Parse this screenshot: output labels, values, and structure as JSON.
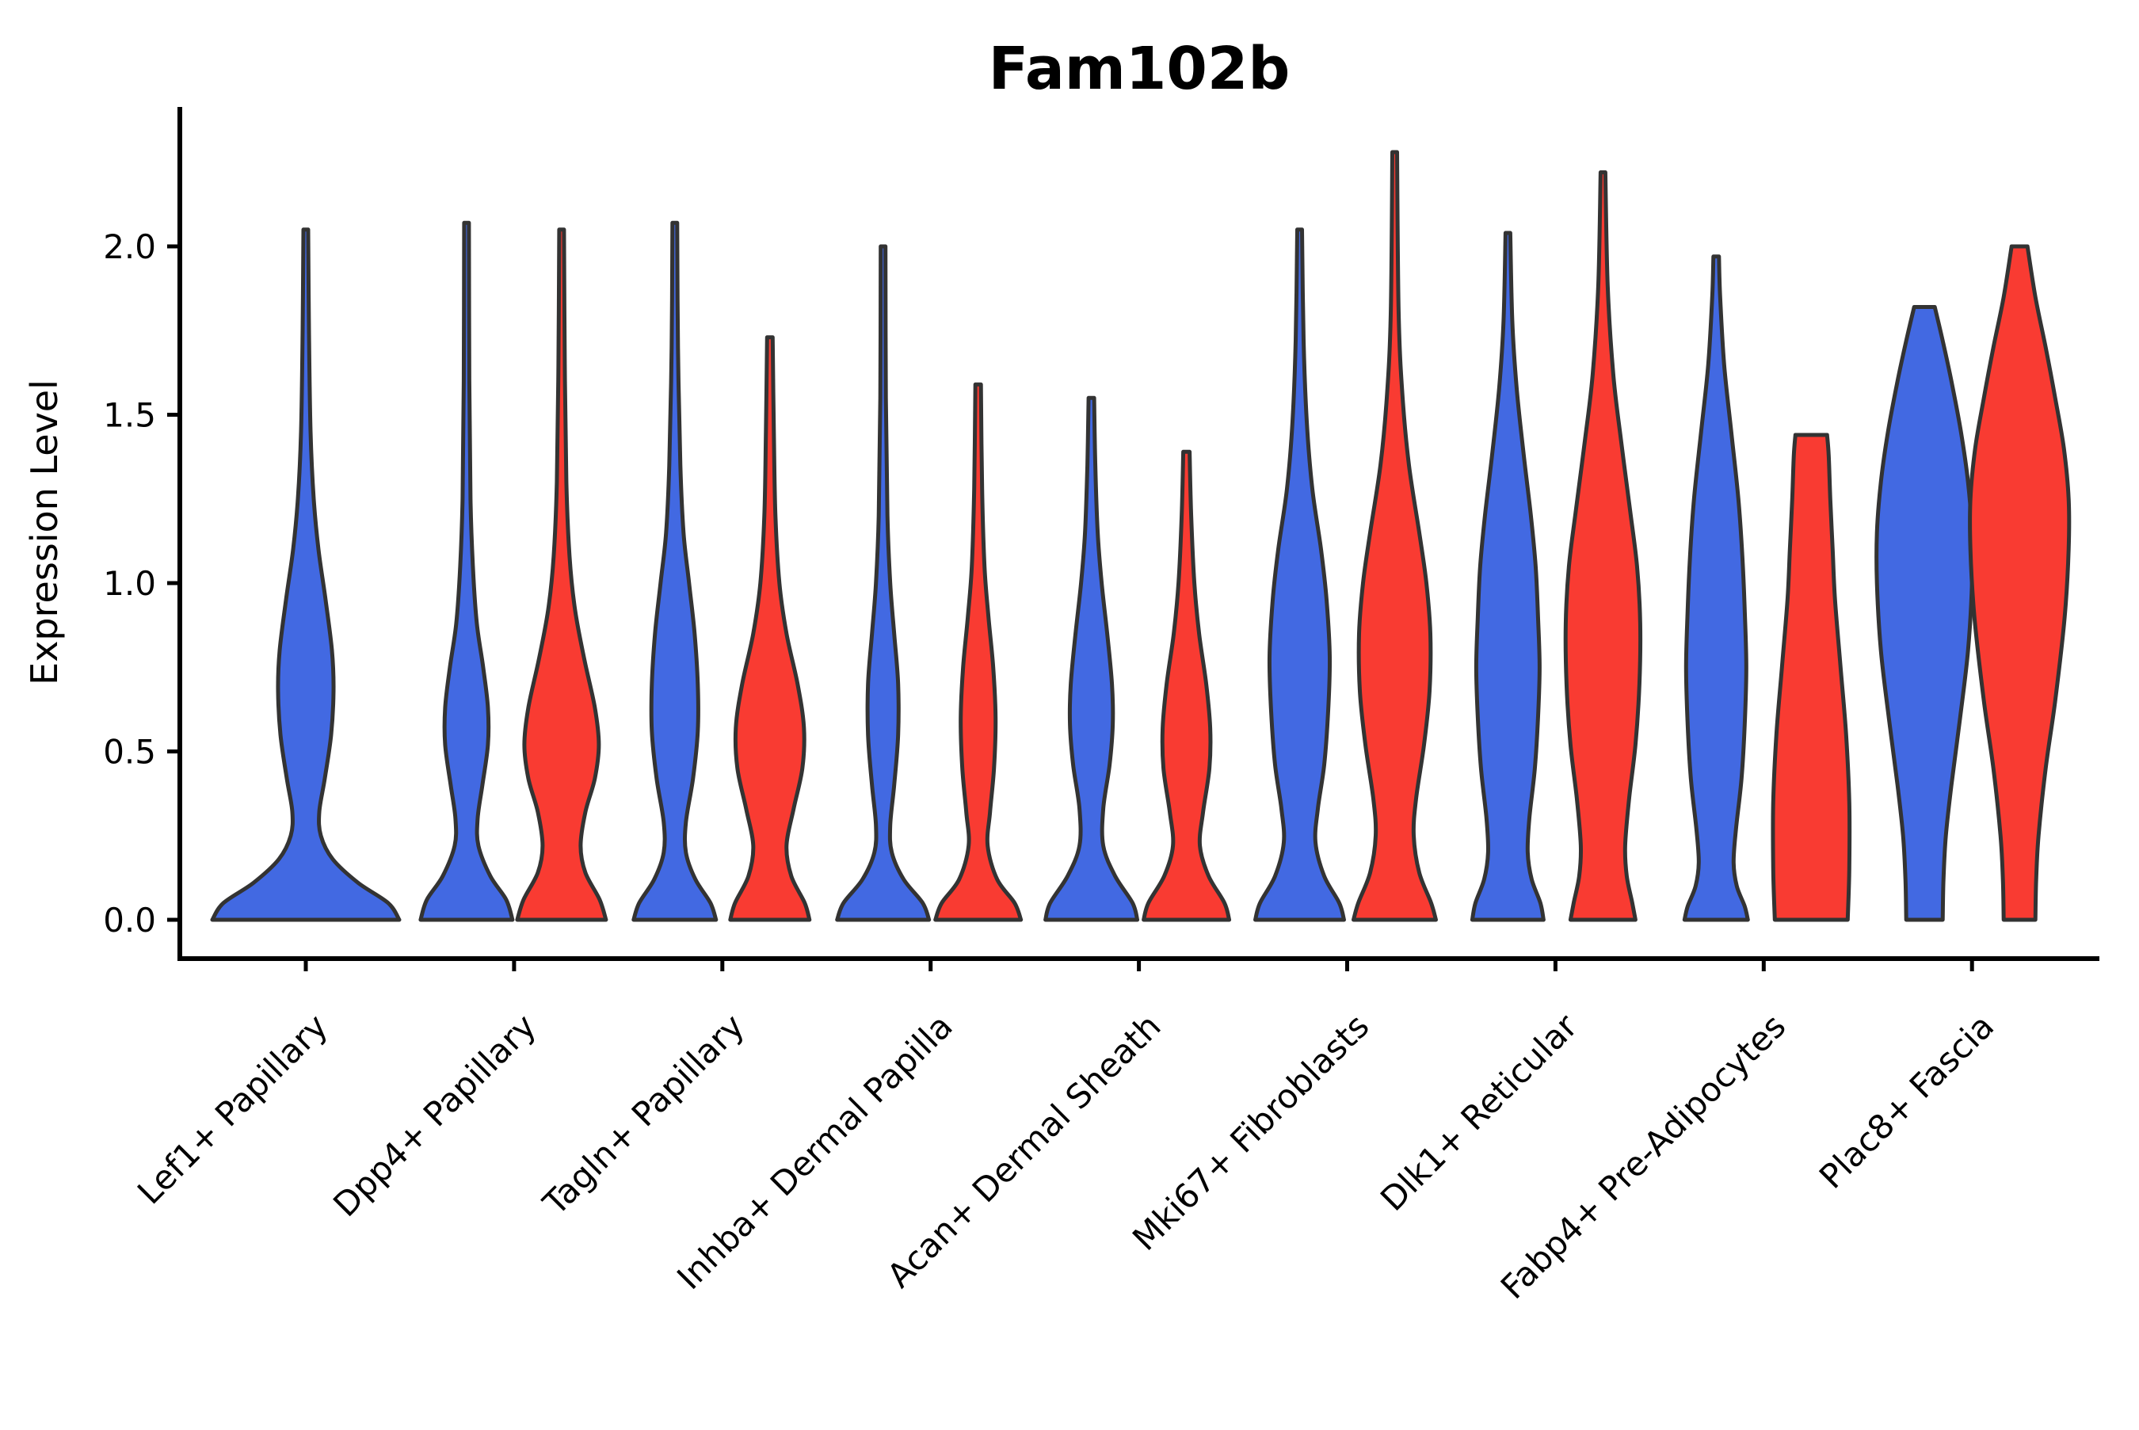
{
  "chart_data": {
    "type": "violin",
    "title": "Fam102b",
    "ylabel": "Expression Level",
    "xlabel": "",
    "yticks": [
      "0.0",
      "0.5",
      "1.0",
      "1.5",
      "2.0"
    ],
    "ylim": [
      -0.12,
      2.4
    ],
    "grid": false,
    "legend_position": "none",
    "x_tick_rotation_deg": 45,
    "colors": {
      "split_blue": "#4269E2",
      "split_red": "#F93B32",
      "outline": "#333333",
      "axis": "#000000"
    },
    "categories": [
      "Lef1+ Papillary",
      "Dpp4+ Papillary",
      "Tagln+ Papillary",
      "Inhba+ Dermal Papilla",
      "Acan+ Dermal Sheath",
      "Mki67+ Fibroblasts",
      "Dlk1+ Reticular",
      "Fabp4+ Pre-Adipocytes",
      "Plac8+ Fascia"
    ],
    "violins": [
      {
        "category": "Lef1+ Papillary",
        "blue": {
          "max_expression": 2.05,
          "solo": true,
          "profile": [
            [
              0,
              118
            ],
            [
              0.05,
              104
            ],
            [
              0.11,
              66
            ],
            [
              0.18,
              34
            ],
            [
              0.25,
              19
            ],
            [
              0.32,
              17
            ],
            [
              0.42,
              24
            ],
            [
              0.55,
              32
            ],
            [
              0.68,
              35
            ],
            [
              0.8,
              33
            ],
            [
              0.95,
              25
            ],
            [
              1.1,
              16
            ],
            [
              1.25,
              10
            ],
            [
              1.45,
              6
            ],
            [
              1.75,
              4
            ],
            [
              2.05,
              3
            ]
          ]
        },
        "red": null
      },
      {
        "category": "Dpp4+ Papillary",
        "blue": {
          "max_expression": 2.07,
          "solo": false,
          "profile": [
            [
              0,
              58
            ],
            [
              0.06,
              50
            ],
            [
              0.13,
              30
            ],
            [
              0.22,
              15
            ],
            [
              0.3,
              14
            ],
            [
              0.4,
              20
            ],
            [
              0.52,
              27
            ],
            [
              0.63,
              27
            ],
            [
              0.75,
              21
            ],
            [
              0.88,
              13
            ],
            [
              1.05,
              8
            ],
            [
              1.25,
              5
            ],
            [
              1.6,
              3.5
            ],
            [
              2.07,
              3
            ]
          ]
        },
        "red": {
          "max_expression": 2.05,
          "solo": false,
          "profile": [
            [
              0,
              56
            ],
            [
              0.06,
              48
            ],
            [
              0.14,
              30
            ],
            [
              0.22,
              24
            ],
            [
              0.32,
              30
            ],
            [
              0.42,
              42
            ],
            [
              0.52,
              47
            ],
            [
              0.63,
              42
            ],
            [
              0.77,
              29
            ],
            [
              0.92,
              17
            ],
            [
              1.08,
              10
            ],
            [
              1.3,
              6
            ],
            [
              1.65,
              4
            ],
            [
              2.05,
              3
            ]
          ]
        }
      },
      {
        "category": "Tagln+ Papillary",
        "blue": {
          "max_expression": 2.07,
          "solo": false,
          "profile": [
            [
              0,
              52
            ],
            [
              0.05,
              45
            ],
            [
              0.12,
              26
            ],
            [
              0.2,
              14
            ],
            [
              0.29,
              14
            ],
            [
              0.42,
              23
            ],
            [
              0.56,
              29
            ],
            [
              0.7,
              29
            ],
            [
              0.85,
              25
            ],
            [
              1.0,
              18
            ],
            [
              1.15,
              11
            ],
            [
              1.35,
              7
            ],
            [
              1.7,
              4
            ],
            [
              2.07,
              3
            ]
          ]
        },
        "red": {
          "max_expression": 1.73,
          "solo": false,
          "profile": [
            [
              0,
              50
            ],
            [
              0.05,
              44
            ],
            [
              0.13,
              27
            ],
            [
              0.22,
              21
            ],
            [
              0.33,
              30
            ],
            [
              0.45,
              41
            ],
            [
              0.57,
              43
            ],
            [
              0.7,
              35
            ],
            [
              0.85,
              21
            ],
            [
              1.0,
              12
            ],
            [
              1.2,
              7
            ],
            [
              1.45,
              5
            ],
            [
              1.73,
              3.5
            ]
          ]
        }
      },
      {
        "category": "Inhba+ Dermal Papilla",
        "blue": {
          "max_expression": 2.0,
          "solo": false,
          "profile": [
            [
              0,
              58
            ],
            [
              0.05,
              50
            ],
            [
              0.12,
              26
            ],
            [
              0.2,
              11
            ],
            [
              0.28,
              9
            ],
            [
              0.4,
              14
            ],
            [
              0.55,
              19
            ],
            [
              0.7,
              19
            ],
            [
              0.85,
              14
            ],
            [
              1.0,
              9
            ],
            [
              1.2,
              5.5
            ],
            [
              1.55,
              3.5
            ],
            [
              2.0,
              3
            ]
          ]
        },
        "red": {
          "max_expression": 1.59,
          "solo": false,
          "profile": [
            [
              0,
              54
            ],
            [
              0.05,
              46
            ],
            [
              0.12,
              24
            ],
            [
              0.22,
              12
            ],
            [
              0.32,
              15
            ],
            [
              0.45,
              20
            ],
            [
              0.6,
              22
            ],
            [
              0.75,
              19
            ],
            [
              0.9,
              13
            ],
            [
              1.05,
              8
            ],
            [
              1.28,
              5
            ],
            [
              1.59,
              3.5
            ]
          ]
        }
      },
      {
        "category": "Acan+ Dermal Sheath",
        "blue": {
          "max_expression": 1.55,
          "solo": false,
          "profile": [
            [
              0,
              58
            ],
            [
              0.05,
              52
            ],
            [
              0.13,
              30
            ],
            [
              0.22,
              15
            ],
            [
              0.33,
              15
            ],
            [
              0.46,
              23
            ],
            [
              0.58,
              27
            ],
            [
              0.7,
              26
            ],
            [
              0.85,
              20
            ],
            [
              1.0,
              13
            ],
            [
              1.15,
              8
            ],
            [
              1.35,
              5
            ],
            [
              1.55,
              3.5
            ]
          ]
        },
        "red": {
          "max_expression": 1.39,
          "solo": false,
          "profile": [
            [
              0,
              54
            ],
            [
              0.05,
              48
            ],
            [
              0.13,
              28
            ],
            [
              0.22,
              17
            ],
            [
              0.32,
              21
            ],
            [
              0.45,
              29
            ],
            [
              0.57,
              30
            ],
            [
              0.7,
              25
            ],
            [
              0.85,
              16
            ],
            [
              1.0,
              10
            ],
            [
              1.2,
              6
            ],
            [
              1.39,
              4
            ]
          ]
        }
      },
      {
        "category": "Mki67+ Fibroblasts",
        "blue": {
          "max_expression": 2.05,
          "solo": false,
          "profile": [
            [
              0,
              56
            ],
            [
              0.05,
              50
            ],
            [
              0.13,
              31
            ],
            [
              0.23,
              20
            ],
            [
              0.33,
              23
            ],
            [
              0.46,
              31
            ],
            [
              0.62,
              36
            ],
            [
              0.78,
              38
            ],
            [
              0.95,
              34
            ],
            [
              1.1,
              27
            ],
            [
              1.28,
              16
            ],
            [
              1.48,
              9
            ],
            [
              1.72,
              5
            ],
            [
              2.05,
              3
            ]
          ]
        },
        "red": {
          "max_expression": 2.28,
          "solo": false,
          "profile": [
            [
              0,
              52
            ],
            [
              0.05,
              46
            ],
            [
              0.14,
              31
            ],
            [
              0.25,
              24
            ],
            [
              0.36,
              27
            ],
            [
              0.52,
              37
            ],
            [
              0.68,
              44
            ],
            [
              0.85,
              45
            ],
            [
              1.0,
              40
            ],
            [
              1.15,
              31
            ],
            [
              1.35,
              18
            ],
            [
              1.55,
              10
            ],
            [
              1.8,
              5
            ],
            [
              2.28,
              3
            ]
          ]
        }
      },
      {
        "category": "Dlk1+ Reticular",
        "blue": {
          "max_expression": 2.04,
          "solo": false,
          "profile": [
            [
              0,
              45
            ],
            [
              0.05,
              41
            ],
            [
              0.12,
              30
            ],
            [
              0.2,
              25
            ],
            [
              0.3,
              27
            ],
            [
              0.45,
              34
            ],
            [
              0.6,
              38
            ],
            [
              0.75,
              40
            ],
            [
              0.9,
              38
            ],
            [
              1.05,
              35
            ],
            [
              1.2,
              29
            ],
            [
              1.38,
              20
            ],
            [
              1.58,
              11
            ],
            [
              1.78,
              5.5
            ],
            [
              2.04,
              3
            ]
          ]
        },
        "red": {
          "max_expression": 2.22,
          "solo": false,
          "profile": [
            [
              0,
              41
            ],
            [
              0.05,
              37
            ],
            [
              0.13,
              30
            ],
            [
              0.22,
              28
            ],
            [
              0.36,
              33
            ],
            [
              0.52,
              41
            ],
            [
              0.7,
              46
            ],
            [
              0.88,
              47
            ],
            [
              1.05,
              43
            ],
            [
              1.22,
              34
            ],
            [
              1.42,
              23
            ],
            [
              1.62,
              13
            ],
            [
              1.88,
              6
            ],
            [
              2.22,
              3
            ]
          ]
        }
      },
      {
        "category": "Fabp4+ Pre-Adipocytes",
        "blue": {
          "max_expression": 1.97,
          "solo": false,
          "profile": [
            [
              0,
              40
            ],
            [
              0.04,
              36
            ],
            [
              0.1,
              26
            ],
            [
              0.17,
              22
            ],
            [
              0.27,
              25
            ],
            [
              0.42,
              32
            ],
            [
              0.58,
              36
            ],
            [
              0.75,
              38
            ],
            [
              0.92,
              36
            ],
            [
              1.08,
              33
            ],
            [
              1.25,
              28
            ],
            [
              1.45,
              19
            ],
            [
              1.65,
              10
            ],
            [
              1.85,
              5
            ],
            [
              1.97,
              3.5
            ]
          ]
        },
        "red": {
          "max_expression": 1.44,
          "solo": false,
          "profile": [
            [
              0,
              46
            ],
            [
              0.15,
              48
            ],
            [
              0.35,
              48
            ],
            [
              0.55,
              44
            ],
            [
              0.75,
              37
            ],
            [
              0.95,
              30
            ],
            [
              1.1,
              27
            ],
            [
              1.25,
              24
            ],
            [
              1.38,
              22
            ],
            [
              1.44,
              20
            ]
          ]
        }
      },
      {
        "category": "Plac8+ Fascia",
        "blue": {
          "max_expression": 1.82,
          "solo": false,
          "profile": [
            [
              0,
              23
            ],
            [
              0.12,
              24
            ],
            [
              0.25,
              27
            ],
            [
              0.4,
              34
            ],
            [
              0.6,
              45
            ],
            [
              0.8,
              55
            ],
            [
              1.0,
              60
            ],
            [
              1.15,
              60
            ],
            [
              1.3,
              55
            ],
            [
              1.45,
              46
            ],
            [
              1.6,
              34
            ],
            [
              1.72,
              23
            ],
            [
              1.82,
              13
            ]
          ]
        },
        "red": {
          "max_expression": 2.0,
          "solo": false,
          "profile": [
            [
              0,
              20
            ],
            [
              0.12,
              21
            ],
            [
              0.25,
              24
            ],
            [
              0.45,
              33
            ],
            [
              0.65,
              45
            ],
            [
              0.9,
              57
            ],
            [
              1.1,
              62
            ],
            [
              1.25,
              62
            ],
            [
              1.4,
              56
            ],
            [
              1.55,
              45
            ],
            [
              1.7,
              33
            ],
            [
              1.85,
              20
            ],
            [
              2.0,
              10
            ]
          ]
        }
      }
    ]
  }
}
